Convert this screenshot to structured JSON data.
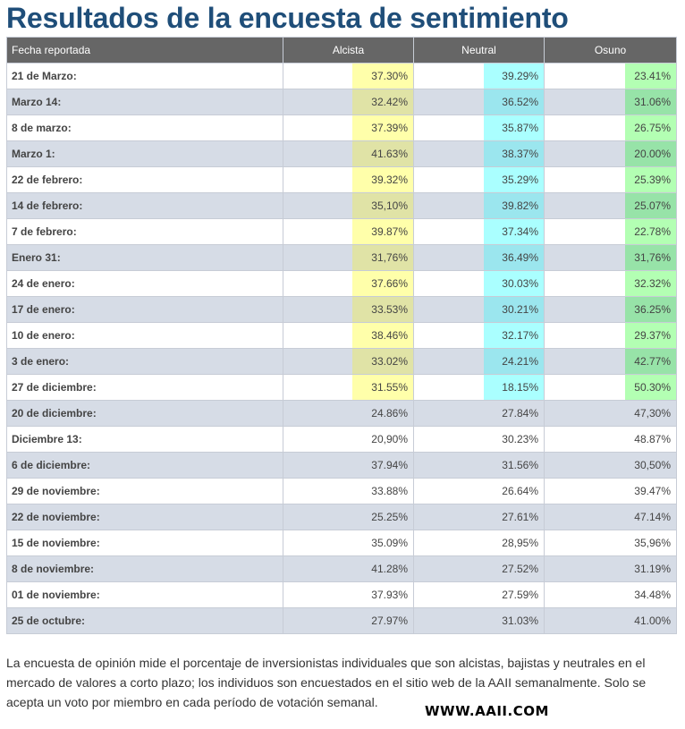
{
  "title": "Resultados de la encuesta de sentimiento",
  "table": {
    "headers": {
      "date": "Fecha reportada",
      "bullish": "Alcista",
      "neutral": "Neutral",
      "bearish": "Osuno"
    },
    "rows": [
      {
        "date": "21 de Marzo:",
        "bullish": "37.30%",
        "neutral": "39.29%",
        "bearish": "23.41%",
        "highlight": true
      },
      {
        "date": "Marzo 14:",
        "bullish": "32.42%",
        "neutral": "36.52%",
        "bearish": "31.06%",
        "highlight": true
      },
      {
        "date": "8 de marzo:",
        "bullish": "37.39%",
        "neutral": "35.87%",
        "bearish": "26.75%",
        "highlight": true
      },
      {
        "date": "Marzo 1:",
        "bullish": "41.63%",
        "neutral": "38.37%",
        "bearish": "20.00%",
        "highlight": true
      },
      {
        "date": "22 de febrero:",
        "bullish": "39.32%",
        "neutral": "35.29%",
        "bearish": "25.39%",
        "highlight": true
      },
      {
        "date": "14 de febrero:",
        "bullish": "35,10%",
        "neutral": "39.82%",
        "bearish": "25.07%",
        "highlight": true
      },
      {
        "date": "7 de febrero:",
        "bullish": "39.87%",
        "neutral": "37.34%",
        "bearish": "22.78%",
        "highlight": true
      },
      {
        "date": "Enero 31:",
        "bullish": "31,76%",
        "neutral": "36.49%",
        "bearish": "31,76%",
        "highlight": true
      },
      {
        "date": "24 de enero:",
        "bullish": "37.66%",
        "neutral": "30.03%",
        "bearish": "32.32%",
        "highlight": true
      },
      {
        "date": "17 de enero:",
        "bullish": "33.53%",
        "neutral": "30.21%",
        "bearish": "36.25%",
        "highlight": true
      },
      {
        "date": "10 de enero:",
        "bullish": "38.46%",
        "neutral": "32.17%",
        "bearish": "29.37%",
        "highlight": true
      },
      {
        "date": "3 de enero:",
        "bullish": "33.02%",
        "neutral": "24.21%",
        "bearish": "42.77%",
        "highlight": true
      },
      {
        "date": "27 de diciembre:",
        "bullish": "31.55%",
        "neutral": "18.15%",
        "bearish": "50.30%",
        "highlight": true
      },
      {
        "date": "20 de diciembre:",
        "bullish": "24.86%",
        "neutral": "27.84%",
        "bearish": "47,30%",
        "highlight": false
      },
      {
        "date": "Diciembre 13:",
        "bullish": "20,90%",
        "neutral": "30.23%",
        "bearish": "48.87%",
        "highlight": false
      },
      {
        "date": "6 de diciembre:",
        "bullish": "37.94%",
        "neutral": "31.56%",
        "bearish": "30,50%",
        "highlight": false
      },
      {
        "date": "29 de noviembre:",
        "bullish": "33.88%",
        "neutral": "26.64%",
        "bearish": "39.47%",
        "highlight": false
      },
      {
        "date": "22 de noviembre:",
        "bullish": "25.25%",
        "neutral": "27.61%",
        "bearish": "47.14%",
        "highlight": false
      },
      {
        "date": "15 de noviembre:",
        "bullish": "35.09%",
        "neutral": "28,95%",
        "bearish": "35,96%",
        "highlight": false
      },
      {
        "date": "8 de noviembre:",
        "bullish": "41.28%",
        "neutral": "27.52%",
        "bearish": "31.19%",
        "highlight": false
      },
      {
        "date": "01 de noviembre:",
        "bullish": "37.93%",
        "neutral": "27.59%",
        "bearish": "34.48%",
        "highlight": false
      },
      {
        "date": "25 de octubre:",
        "bullish": "27.97%",
        "neutral": "31.03%",
        "bearish": "41.00%",
        "highlight": false
      }
    ]
  },
  "description": "La encuesta de opinión mide el porcentaje de inversionistas individuales que son alcistas, bajistas y neutrales en el mercado de valores a corto plazo; los individuos son encuestados en el sitio web de la AAII semanalmente. Solo se acepta un voto por miembro en cada período de votación semanal.",
  "watermark": "WWW.AAII.COM",
  "colors": {
    "title": "#1f4e79",
    "header_bg": "#666666",
    "alt_row": "#d6dce6",
    "bullish_highlight": "#ffffaa",
    "neutral_highlight": "#aaffff",
    "bearish_highlight": "#b3ffb3"
  }
}
